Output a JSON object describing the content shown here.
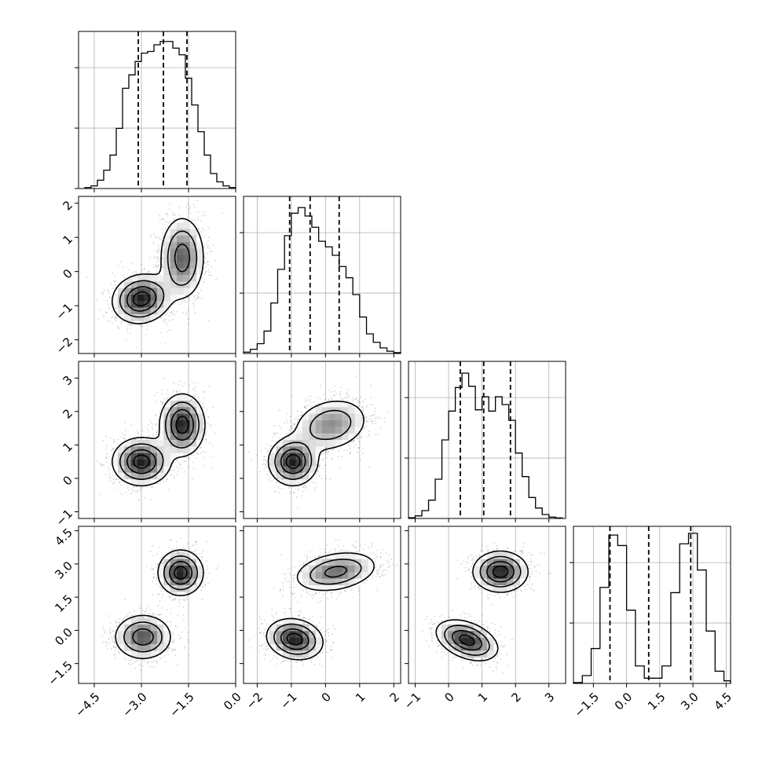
{
  "chart_data": {
    "type": "corner",
    "grid": true,
    "legend": "none",
    "parameters": [
      {
        "id": "p0",
        "range": [
          -5.0,
          0.0
        ],
        "ticks": [
          -4.5,
          -3.0,
          -1.5,
          0.0
        ],
        "tick_labels": [
          "−4.5",
          "−3.0",
          "−1.5",
          "0.0"
        ]
      },
      {
        "id": "p1",
        "range": [
          -2.4,
          2.2
        ],
        "ticks": [
          -2,
          -1,
          0,
          1,
          2
        ],
        "tick_labels": [
          "−2",
          "−1",
          "0",
          "1",
          "2"
        ]
      },
      {
        "id": "p2",
        "range": [
          -1.2,
          3.5
        ],
        "ticks": [
          -1,
          0,
          1,
          2,
          3
        ],
        "tick_labels": [
          "−1",
          "0",
          "1",
          "2",
          "3"
        ]
      },
      {
        "id": "p3",
        "range": [
          -2.4,
          4.7
        ],
        "ticks": [
          -1.5,
          0.0,
          1.5,
          3.0,
          4.5
        ],
        "tick_labels": [
          "−1.5",
          "0.0",
          "1.5",
          "3.0",
          "4.5"
        ]
      }
    ],
    "histograms": [
      {
        "param": "p0",
        "edges": [
          -4.8,
          -4.6,
          -4.4,
          -4.2,
          -4.0,
          -3.8,
          -3.6,
          -3.4,
          -3.2,
          -3.0,
          -2.8,
          -2.6,
          -2.4,
          -2.2,
          -2.0,
          -1.8,
          -1.6,
          -1.4,
          -1.2,
          -1.0,
          -0.8,
          -0.6,
          -0.4,
          -0.2,
          0.0
        ],
        "counts": [
          3,
          8,
          25,
          55,
          100,
          180,
          300,
          340,
          380,
          405,
          410,
          430,
          440,
          440,
          420,
          400,
          330,
          250,
          170,
          100,
          45,
          20,
          8,
          3
        ],
        "quantiles": [
          -3.1,
          -2.3,
          -1.55
        ],
        "ymax": 470
      },
      {
        "param": "p1",
        "edges": [
          -2.4,
          -2.2,
          -2.0,
          -1.8,
          -1.6,
          -1.4,
          -1.2,
          -1.0,
          -0.8,
          -0.6,
          -0.4,
          -0.2,
          0.0,
          0.2,
          0.4,
          0.6,
          0.8,
          1.0,
          1.2,
          1.4,
          1.6,
          1.8,
          2.0,
          2.2
        ],
        "counts": [
          5,
          15,
          35,
          80,
          180,
          300,
          420,
          500,
          520,
          490,
          450,
          400,
          380,
          350,
          310,
          270,
          210,
          130,
          70,
          40,
          20,
          8,
          3
        ],
        "quantiles": [
          -1.05,
          -0.45,
          0.4
        ],
        "ymax": 560
      },
      {
        "param": "p2",
        "edges": [
          -1.2,
          -1.0,
          -0.8,
          -0.6,
          -0.4,
          -0.2,
          0.0,
          0.2,
          0.4,
          0.6,
          0.8,
          1.0,
          1.2,
          1.4,
          1.6,
          1.8,
          2.0,
          2.2,
          2.4,
          2.6,
          2.8,
          3.0,
          3.2,
          3.4
        ],
        "counts": [
          3,
          10,
          30,
          70,
          150,
          300,
          410,
          500,
          555,
          505,
          415,
          465,
          410,
          465,
          435,
          375,
          250,
          160,
          80,
          40,
          15,
          5,
          2
        ],
        "quantiles": [
          0.35,
          1.05,
          1.85
        ],
        "ymax": 600
      },
      {
        "param": "p3",
        "edges": [
          -2.4,
          -2.0,
          -1.6,
          -1.2,
          -0.8,
          -0.4,
          0.0,
          0.4,
          0.8,
          1.2,
          1.6,
          2.0,
          2.4,
          2.8,
          3.2,
          3.6,
          4.0,
          4.4,
          4.7
        ],
        "counts": [
          5,
          45,
          200,
          550,
          850,
          790,
          420,
          100,
          30,
          30,
          100,
          520,
          800,
          860,
          650,
          300,
          70,
          15
        ],
        "quantiles": [
          -0.75,
          1.0,
          2.9
        ],
        "ymax": 900
      }
    ],
    "pairs": [
      {
        "x": "p0",
        "y": "p1",
        "modes": [
          {
            "mean": [
              -3.0,
              -0.8
            ],
            "sd": [
              0.45,
              0.35
            ],
            "rho": 0.1,
            "weight": 0.5
          },
          {
            "mean": [
              -1.7,
              0.4
            ],
            "sd": [
              0.35,
              0.6
            ],
            "rho": 0.0,
            "weight": 0.5
          }
        ]
      },
      {
        "x": "p0",
        "y": "p2",
        "modes": [
          {
            "mean": [
              -3.0,
              0.5
            ],
            "sd": [
              0.45,
              0.35
            ],
            "rho": 0.0,
            "weight": 0.5
          },
          {
            "mean": [
              -1.7,
              1.6
            ],
            "sd": [
              0.35,
              0.45
            ],
            "rho": 0.0,
            "weight": 0.5
          }
        ]
      },
      {
        "x": "p0",
        "y": "p3",
        "modes": [
          {
            "mean": [
              -2.95,
              -0.3
            ],
            "sd": [
              0.45,
              0.5
            ],
            "rho": 0.0,
            "weight": 0.5
          },
          {
            "mean": [
              -1.75,
              2.6
            ],
            "sd": [
              0.35,
              0.5
            ],
            "rho": 0.0,
            "weight": 0.5
          }
        ]
      },
      {
        "x": "p1",
        "y": "p2",
        "modes": [
          {
            "mean": [
              -0.95,
              0.5
            ],
            "sd": [
              0.35,
              0.35
            ],
            "rho": 0.0,
            "weight": 0.5
          },
          {
            "mean": [
              0.15,
              1.6
            ],
            "sd": [
              0.55,
              0.4
            ],
            "rho": 0.2,
            "weight": 0.5
          }
        ]
      },
      {
        "x": "p1",
        "y": "p3",
        "modes": [
          {
            "mean": [
              -0.9,
              -0.4
            ],
            "sd": [
              0.4,
              0.45
            ],
            "rho": -0.15,
            "weight": 0.5
          },
          {
            "mean": [
              0.3,
              2.65
            ],
            "sd": [
              0.6,
              0.45
            ],
            "rho": 0.3,
            "weight": 0.5
          }
        ]
      },
      {
        "x": "p2",
        "y": "p3",
        "modes": [
          {
            "mean": [
              0.55,
              -0.45
            ],
            "sd": [
              0.45,
              0.45
            ],
            "rho": -0.4,
            "weight": 0.5
          },
          {
            "mean": [
              1.55,
              2.65
            ],
            "sd": [
              0.4,
              0.45
            ],
            "rho": 0.0,
            "weight": 0.5
          }
        ]
      }
    ]
  }
}
